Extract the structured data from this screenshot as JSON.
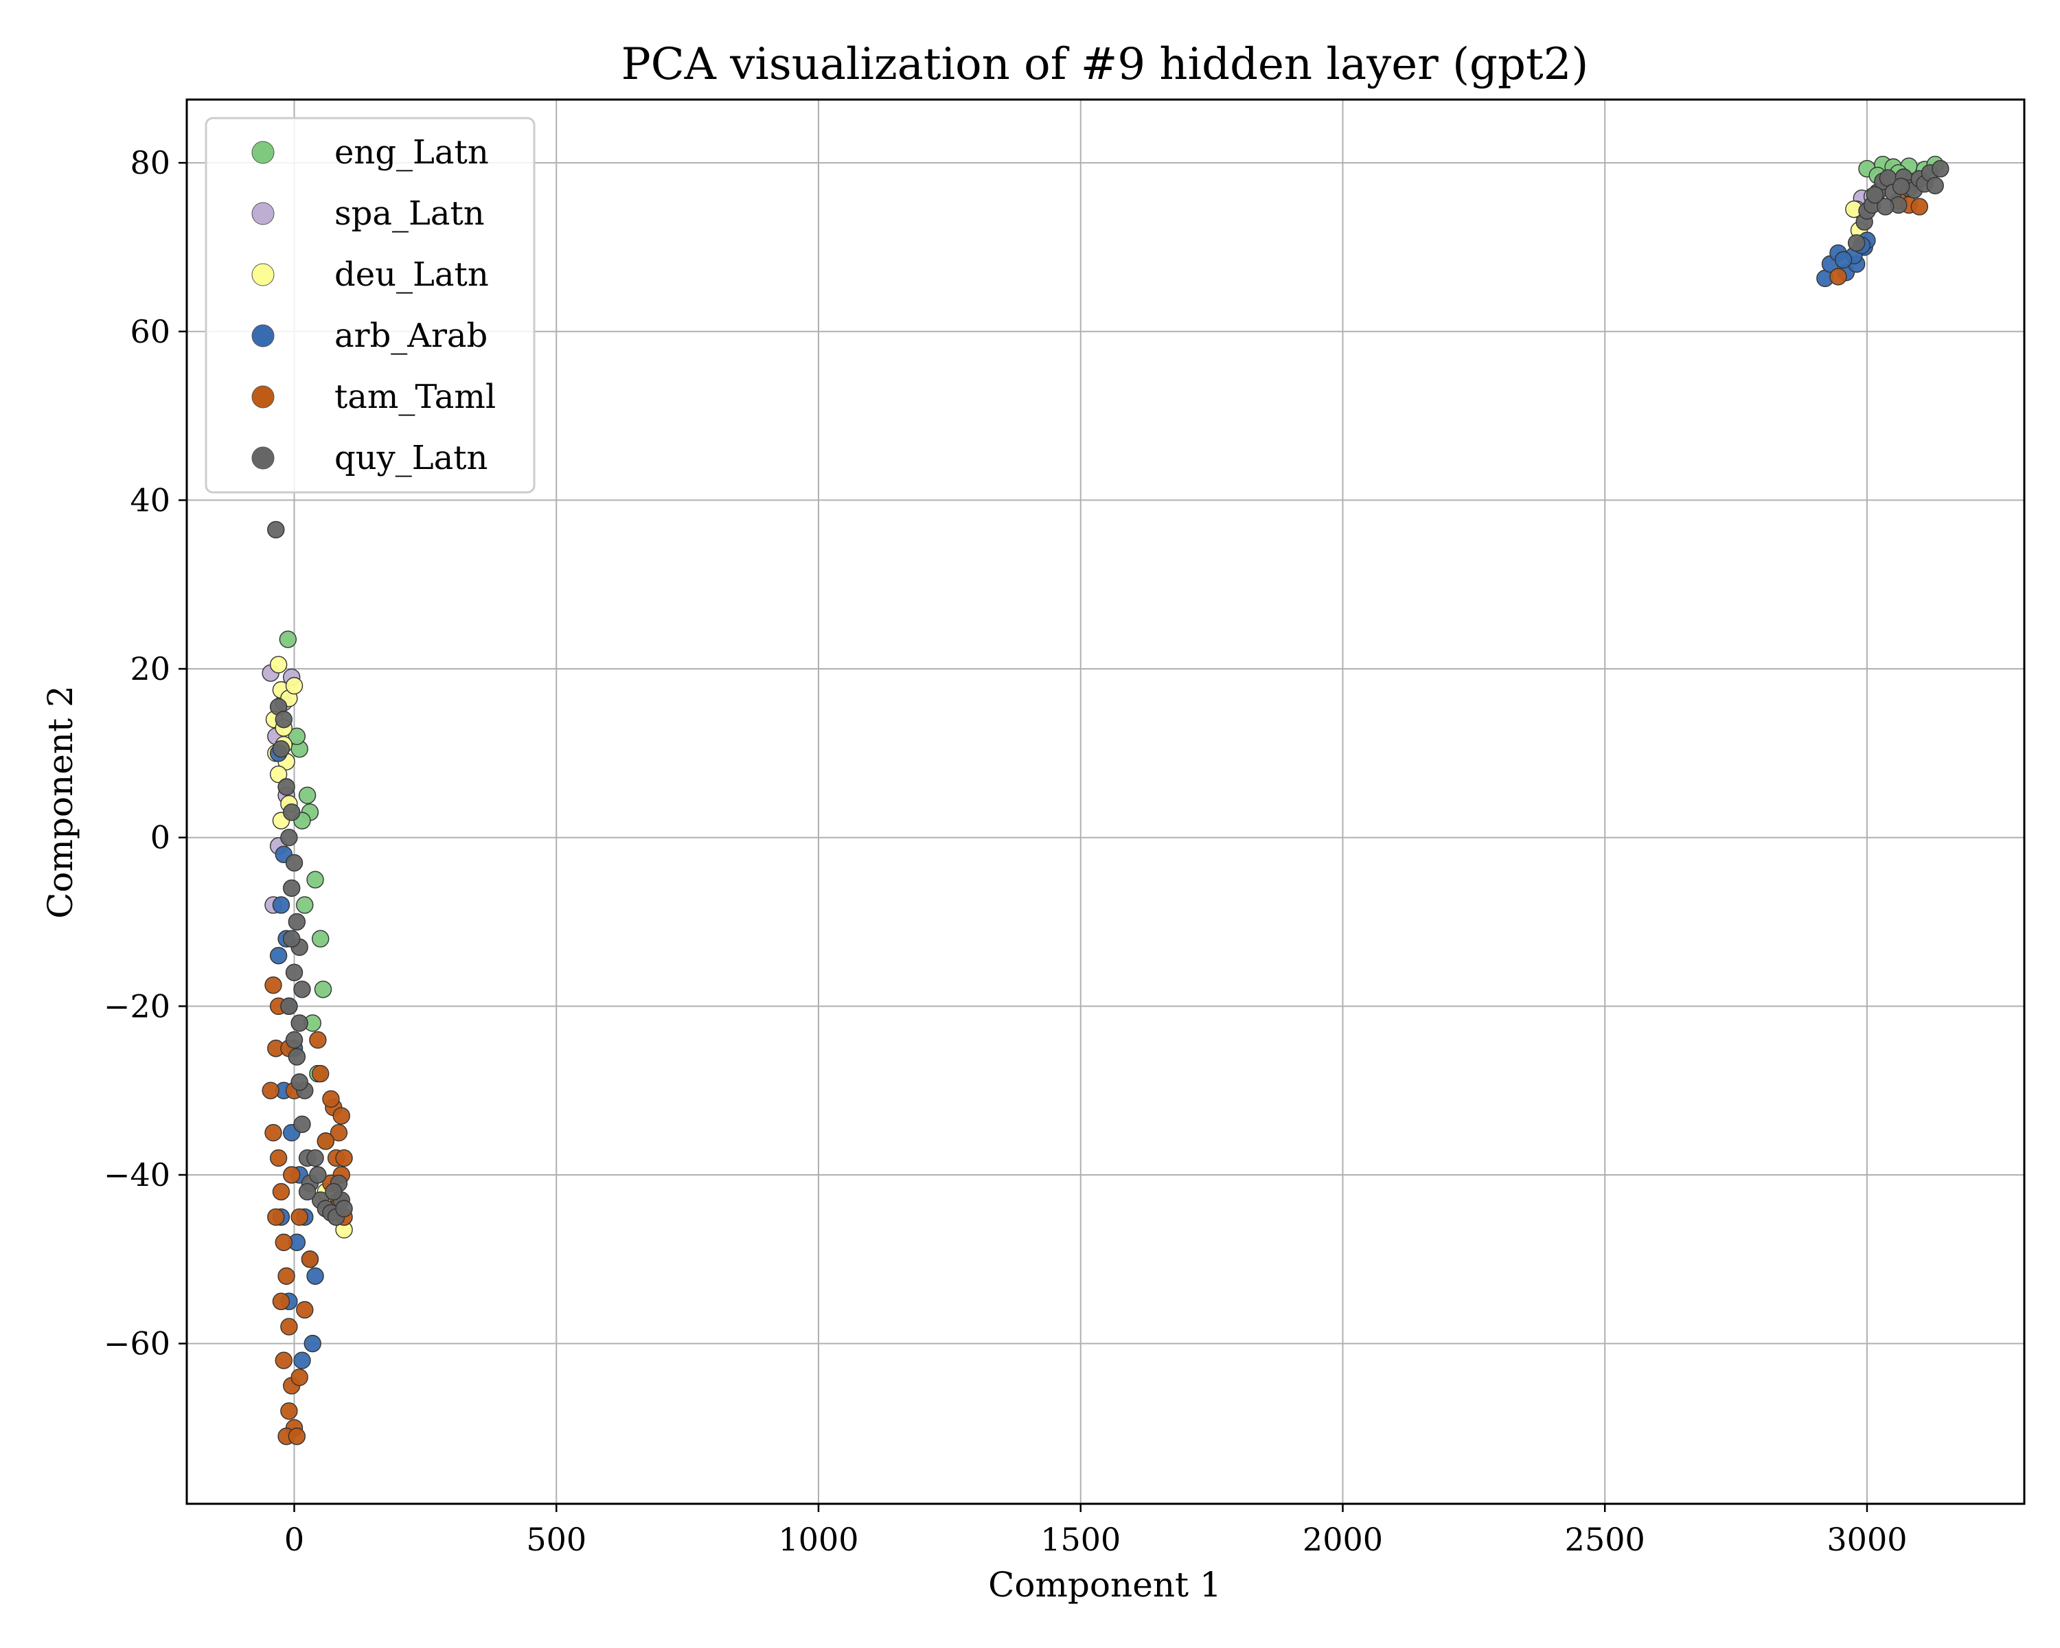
{
  "chart_data": {
    "type": "scatter",
    "title": "PCA visualization of #9 hidden layer (gpt2)",
    "xlabel": "Component 1",
    "ylabel": "Component 2",
    "xlim": [
      -205,
      3300
    ],
    "ylim": [
      -79,
      87.5
    ],
    "x_ticks": [
      0,
      500,
      1000,
      1500,
      2000,
      2500,
      3000
    ],
    "x_tick_labels": [
      "0",
      "500",
      "1000",
      "1500",
      "2000",
      "2500",
      "3000"
    ],
    "y_ticks": [
      -60,
      -40,
      -20,
      0,
      20,
      40,
      60,
      80
    ],
    "y_tick_labels": [
      "−60",
      "−40",
      "−20",
      "0",
      "20",
      "40",
      "60",
      "80"
    ],
    "grid": true,
    "legend_position": "top-left",
    "series": [
      {
        "name": "eng_Latn",
        "color": "#7fc97f",
        "points": [
          [
            -12,
            23.5
          ],
          [
            10,
            10.5
          ],
          [
            25,
            5
          ],
          [
            30,
            3
          ],
          [
            40,
            -5
          ],
          [
            50,
            -12
          ],
          [
            55,
            -18
          ],
          [
            45,
            -28
          ],
          [
            60,
            -36
          ],
          [
            35,
            -22
          ],
          [
            20,
            -8
          ],
          [
            15,
            2
          ],
          [
            5,
            12
          ],
          [
            3000,
            79.3
          ],
          [
            3030,
            79.8
          ],
          [
            3050,
            79.5
          ],
          [
            3080,
            79.6
          ],
          [
            3110,
            79.2
          ],
          [
            3130,
            79.8
          ],
          [
            3020,
            78.5
          ],
          [
            3060,
            78.8
          ],
          [
            3090,
            77.8
          ]
        ]
      },
      {
        "name": "spa_Latn",
        "color": "#beaed4",
        "points": [
          [
            -45,
            19.5
          ],
          [
            -5,
            19
          ],
          [
            -20,
            16
          ],
          [
            -35,
            12
          ],
          [
            -15,
            5
          ],
          [
            -30,
            -1
          ],
          [
            -40,
            -8
          ],
          [
            2990,
            75.8
          ],
          [
            3010,
            76
          ],
          [
            2980,
            74.5
          ]
        ]
      },
      {
        "name": "deu_Latn",
        "color": "#fdfd96",
        "points": [
          [
            -30,
            20.5
          ],
          [
            -25,
            17.5
          ],
          [
            -10,
            16.5
          ],
          [
            -38,
            14
          ],
          [
            -20,
            13
          ],
          [
            -35,
            10
          ],
          [
            -15,
            9
          ],
          [
            -30,
            7.5
          ],
          [
            -10,
            4
          ],
          [
            -25,
            2
          ],
          [
            -20,
            11
          ],
          [
            0,
            18
          ],
          [
            95,
            -46.5
          ],
          [
            80,
            -45
          ],
          [
            70,
            -43
          ],
          [
            60,
            -42
          ],
          [
            2975,
            74.5
          ],
          [
            2985,
            72
          ]
        ]
      },
      {
        "name": "arb_Arab",
        "color": "#386cb0",
        "points": [
          [
            -30,
            10
          ],
          [
            -20,
            -2
          ],
          [
            -25,
            -8
          ],
          [
            -30,
            -14
          ],
          [
            -15,
            -12
          ],
          [
            -10,
            -20
          ],
          [
            0,
            -25
          ],
          [
            -20,
            -30
          ],
          [
            -5,
            -35
          ],
          [
            10,
            -40
          ],
          [
            20,
            -45
          ],
          [
            30,
            -50
          ],
          [
            40,
            -52
          ],
          [
            35,
            -60
          ],
          [
            15,
            -62
          ],
          [
            -10,
            -55
          ],
          [
            -25,
            -45
          ],
          [
            5,
            -48
          ],
          [
            2920,
            66.3
          ],
          [
            2930,
            68
          ],
          [
            2945,
            69.3
          ],
          [
            2960,
            67
          ],
          [
            2980,
            68
          ],
          [
            2995,
            70
          ],
          [
            3000,
            70.8
          ],
          [
            2975,
            69
          ],
          [
            2955,
            68.5
          ],
          [
            2990,
            70.2
          ]
        ]
      },
      {
        "name": "tam_Taml",
        "color": "#bf5b17",
        "points": [
          [
            -40,
            -17.5
          ],
          [
            -30,
            -20
          ],
          [
            -35,
            -25
          ],
          [
            -45,
            -30
          ],
          [
            -40,
            -35
          ],
          [
            -30,
            -38
          ],
          [
            -25,
            -42
          ],
          [
            -35,
            -45
          ],
          [
            -20,
            -48
          ],
          [
            -15,
            -52
          ],
          [
            -25,
            -55
          ],
          [
            -10,
            -58
          ],
          [
            -20,
            -62
          ],
          [
            -5,
            -65
          ],
          [
            -10,
            -68
          ],
          [
            0,
            -70
          ],
          [
            -15,
            -71
          ],
          [
            5,
            -71
          ],
          [
            10,
            -64
          ],
          [
            20,
            -56
          ],
          [
            30,
            -50
          ],
          [
            10,
            -45
          ],
          [
            -5,
            -40
          ],
          [
            0,
            -30
          ],
          [
            -10,
            -25
          ],
          [
            75,
            -32
          ],
          [
            85,
            -35
          ],
          [
            80,
            -38
          ],
          [
            90,
            -40
          ],
          [
            85,
            -43
          ],
          [
            95,
            -45
          ],
          [
            70,
            -31
          ],
          [
            60,
            -36
          ],
          [
            70,
            -41
          ],
          [
            90,
            -33
          ],
          [
            80,
            -44
          ],
          [
            95,
            -38
          ],
          [
            50,
            -28
          ],
          [
            45,
            -24
          ],
          [
            2945,
            66.5
          ],
          [
            3060,
            75.5
          ],
          [
            3080,
            75
          ],
          [
            3100,
            74.8
          ]
        ]
      },
      {
        "name": "quy_Latn",
        "color": "#666666",
        "points": [
          [
            -35,
            36.5
          ],
          [
            -30,
            15.5
          ],
          [
            -20,
            14
          ],
          [
            -25,
            10.5
          ],
          [
            -15,
            6
          ],
          [
            -5,
            3
          ],
          [
            -10,
            0
          ],
          [
            0,
            -3
          ],
          [
            -5,
            -6
          ],
          [
            5,
            -10
          ],
          [
            10,
            -13
          ],
          [
            0,
            -16
          ],
          [
            15,
            -18
          ],
          [
            10,
            -22
          ],
          [
            5,
            -26
          ],
          [
            20,
            -30
          ],
          [
            15,
            -34
          ],
          [
            25,
            -38
          ],
          [
            30,
            -41
          ],
          [
            40,
            -38
          ],
          [
            50,
            -43
          ],
          [
            60,
            -44
          ],
          [
            70,
            -44.5
          ],
          [
            80,
            -45
          ],
          [
            90,
            -43
          ],
          [
            95,
            -44
          ],
          [
            85,
            -41
          ],
          [
            75,
            -42
          ],
          [
            -10,
            -20
          ],
          [
            0,
            -24
          ],
          [
            10,
            -29
          ],
          [
            -5,
            -12
          ],
          [
            25,
            -42
          ],
          [
            45,
            -40
          ],
          [
            2980,
            70.5
          ],
          [
            2995,
            73
          ],
          [
            3000,
            74.3
          ],
          [
            3010,
            75
          ],
          [
            3020,
            76.5
          ],
          [
            3030,
            77.8
          ],
          [
            3040,
            78.2
          ],
          [
            3050,
            76.5
          ],
          [
            3060,
            75
          ],
          [
            3070,
            78.3
          ],
          [
            3080,
            77
          ],
          [
            3090,
            76.8
          ],
          [
            3100,
            78.1
          ],
          [
            3110,
            77.5
          ],
          [
            3120,
            78.8
          ],
          [
            3130,
            77.3
          ],
          [
            3140,
            79.3
          ],
          [
            3035,
            74.8
          ],
          [
            3015,
            76.2
          ],
          [
            3065,
            77.2
          ]
        ]
      }
    ]
  }
}
